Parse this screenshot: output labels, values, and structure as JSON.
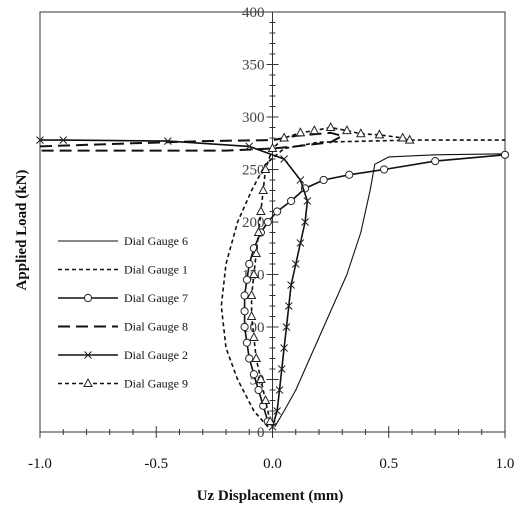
{
  "chart_data": {
    "type": "line",
    "xlabel": "Uz Displacement (mm)",
    "ylabel": "Applied Load (kN)",
    "xlim": [
      -1.0,
      1.0
    ],
    "ylim": [
      0,
      400
    ],
    "x_ticks": [
      {
        "value": -1.0,
        "label": "-1.0"
      },
      {
        "value": -0.5,
        "label": "-0.5"
      },
      {
        "value": 0.0,
        "label": "0.0"
      },
      {
        "value": 0.5,
        "label": "0.5"
      },
      {
        "value": 1.0,
        "label": "1.0"
      }
    ],
    "y_ticks": [
      {
        "value": 0,
        "label": "0"
      },
      {
        "value": 50,
        "label": "50"
      },
      {
        "value": 100,
        "label": "100"
      },
      {
        "value": 150,
        "label": "150"
      },
      {
        "value": 200,
        "label": "200"
      },
      {
        "value": 250,
        "label": "250"
      },
      {
        "value": 300,
        "label": "300"
      },
      {
        "value": 350,
        "label": "350"
      },
      {
        "value": 400,
        "label": "400"
      }
    ],
    "grid": false,
    "legend_position": "left",
    "series": [
      {
        "name": "Dial Gauge 6",
        "line": "solid-thin",
        "marker": "none",
        "points": [
          [
            0.01,
            5
          ],
          [
            0.05,
            20
          ],
          [
            0.1,
            40
          ],
          [
            0.16,
            70
          ],
          [
            0.24,
            110
          ],
          [
            0.32,
            150
          ],
          [
            0.38,
            190
          ],
          [
            0.42,
            230
          ],
          [
            0.44,
            255
          ],
          [
            0.5,
            262
          ],
          [
            0.7,
            264
          ],
          [
            1.0,
            265
          ]
        ]
      },
      {
        "name": "Dial Gauge 1",
        "line": "dashed-short",
        "marker": "none",
        "points": [
          [
            -0.02,
            5
          ],
          [
            -0.08,
            20
          ],
          [
            -0.15,
            50
          ],
          [
            -0.2,
            80
          ],
          [
            -0.22,
            120
          ],
          [
            -0.2,
            160
          ],
          [
            -0.15,
            200
          ],
          [
            -0.09,
            230
          ],
          [
            -0.03,
            255
          ],
          [
            0.05,
            270
          ],
          [
            0.2,
            276
          ],
          [
            0.6,
            278
          ],
          [
            1.0,
            278
          ]
        ]
      },
      {
        "name": "Dial Gauge 7",
        "line": "solid",
        "marker": "circle",
        "points": [
          [
            -0.02,
            10
          ],
          [
            -0.04,
            25
          ],
          [
            -0.06,
            40
          ],
          [
            -0.08,
            55
          ],
          [
            -0.1,
            70
          ],
          [
            -0.11,
            85
          ],
          [
            -0.12,
            100
          ],
          [
            -0.12,
            115
          ],
          [
            -0.12,
            130
          ],
          [
            -0.11,
            145
          ],
          [
            -0.1,
            160
          ],
          [
            -0.08,
            175
          ],
          [
            -0.05,
            190
          ],
          [
            -0.02,
            200
          ],
          [
            0.02,
            210
          ],
          [
            0.08,
            220
          ],
          [
            0.14,
            232
          ],
          [
            0.22,
            240
          ],
          [
            0.33,
            245
          ],
          [
            0.48,
            250
          ],
          [
            0.7,
            258
          ],
          [
            1.0,
            264
          ]
        ]
      },
      {
        "name": "Dial Gauge 8",
        "line": "dashed-long",
        "marker": "none",
        "points": [
          [
            -1.0,
            272
          ],
          [
            -0.6,
            275
          ],
          [
            -0.3,
            277
          ],
          [
            0.0,
            278
          ],
          [
            0.1,
            282
          ],
          [
            0.25,
            285
          ],
          [
            0.3,
            282
          ],
          [
            0.25,
            276
          ],
          [
            0.1,
            272
          ],
          [
            0.0,
            270
          ],
          [
            -0.2,
            268
          ],
          [
            -0.5,
            268
          ],
          [
            -0.8,
            268
          ],
          [
            -1.0,
            268
          ]
        ]
      },
      {
        "name": "Dial Gauge 2",
        "line": "solid",
        "marker": "cross",
        "points": [
          [
            0.0,
            5
          ],
          [
            0.02,
            20
          ],
          [
            0.03,
            40
          ],
          [
            0.04,
            60
          ],
          [
            0.05,
            80
          ],
          [
            0.06,
            100
          ],
          [
            0.07,
            120
          ],
          [
            0.08,
            140
          ],
          [
            0.1,
            160
          ],
          [
            0.12,
            180
          ],
          [
            0.14,
            200
          ],
          [
            0.15,
            220
          ],
          [
            0.12,
            240
          ],
          [
            0.05,
            260
          ],
          [
            -0.1,
            272
          ],
          [
            -0.45,
            277
          ],
          [
            -0.9,
            278
          ],
          [
            -1.0,
            278
          ]
        ]
      },
      {
        "name": "Dial Gauge 9",
        "line": "dashed-short",
        "marker": "triangle",
        "points": [
          [
            -0.01,
            10
          ],
          [
            -0.03,
            30
          ],
          [
            -0.05,
            50
          ],
          [
            -0.07,
            70
          ],
          [
            -0.08,
            90
          ],
          [
            -0.09,
            110
          ],
          [
            -0.09,
            130
          ],
          [
            -0.08,
            150
          ],
          [
            -0.07,
            170
          ],
          [
            -0.06,
            190
          ],
          [
            -0.05,
            210
          ],
          [
            -0.04,
            230
          ],
          [
            -0.03,
            250
          ],
          [
            0.0,
            270
          ],
          [
            0.05,
            280
          ],
          [
            0.12,
            285
          ],
          [
            0.18,
            287
          ],
          [
            0.25,
            290
          ],
          [
            0.32,
            287
          ],
          [
            0.38,
            284
          ],
          [
            0.46,
            283
          ],
          [
            0.56,
            280
          ],
          [
            0.59,
            278
          ]
        ]
      }
    ]
  }
}
